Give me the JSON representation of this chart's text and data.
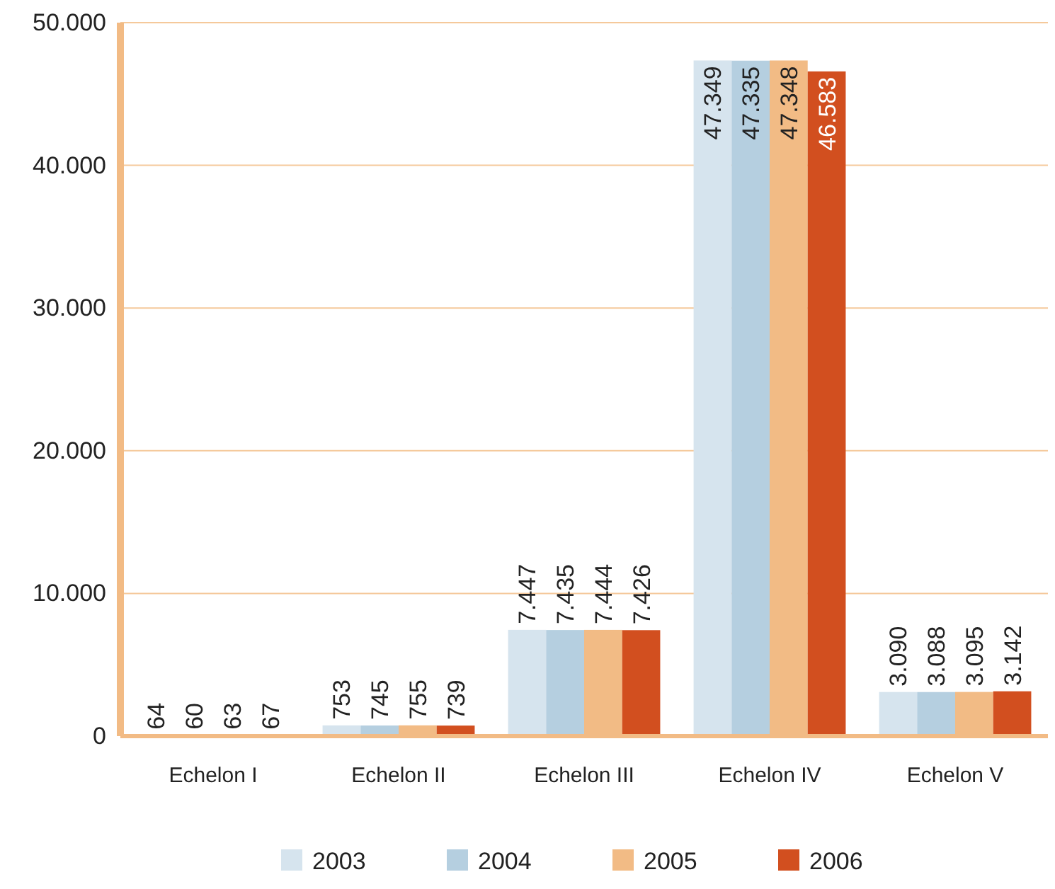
{
  "chart_data": {
    "type": "bar",
    "categories": [
      "Echelon I",
      "Echelon II",
      "Echelon III",
      "Echelon IV",
      "Echelon V"
    ],
    "series": [
      {
        "name": "2003",
        "color": "#d6e4ee",
        "values": [
          64,
          753,
          7447,
          47349,
          3090
        ],
        "value_labels": [
          "64",
          "753",
          "7.447",
          "47.349",
          "3.090"
        ]
      },
      {
        "name": "2004",
        "color": "#b5cfe0",
        "values": [
          60,
          745,
          7435,
          47335,
          3088
        ],
        "value_labels": [
          "60",
          "745",
          "7.435",
          "47.335",
          "3.088"
        ]
      },
      {
        "name": "2005",
        "color": "#f2bb85",
        "values": [
          63,
          755,
          7444,
          47348,
          3095
        ],
        "value_labels": [
          "63",
          "755",
          "7.444",
          "47.348",
          "3.095"
        ]
      },
      {
        "name": "2006",
        "color": "#d24f1f",
        "values": [
          67,
          739,
          7426,
          46583,
          3142
        ],
        "value_labels": [
          "67",
          "739",
          "7.426",
          "46.583",
          "3.142"
        ]
      }
    ],
    "ylim": [
      0,
      50000
    ],
    "yticks": [
      {
        "value": 0,
        "label": "0"
      },
      {
        "value": 10000,
        "label": "10.000"
      },
      {
        "value": 20000,
        "label": "20.000"
      },
      {
        "value": 30000,
        "label": "30.000"
      },
      {
        "value": 40000,
        "label": "40.000"
      },
      {
        "value": 50000,
        "label": "50.000"
      }
    ],
    "grid": "y",
    "legend": "bottom"
  }
}
